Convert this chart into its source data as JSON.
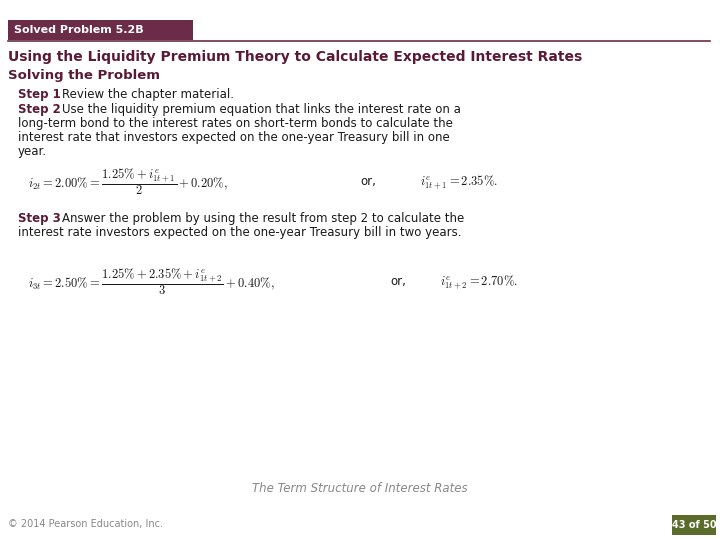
{
  "bg_color": "#ffffff",
  "header_bg": "#6b2c47",
  "header_text": "Solved Problem 5.2B",
  "header_text_color": "#ffffff",
  "title_text": "Using the Liquidity Premium Theory to Calculate Expected Interest Rates",
  "title_color": "#5a1a35",
  "subtitle_text": "Solving the Problem",
  "subtitle_color": "#5a1a35",
  "step_color": "#5a1a35",
  "body_color": "#1a1a1a",
  "footer_text": "The Term Structure of Interest Rates",
  "footer_color": "#888888",
  "copyright_text": "© 2014 Pearson Education, Inc.",
  "page_label": "43 of 50",
  "page_label_bg": "#5a6b2a",
  "page_label_color": "#ffffff",
  "line_color": "#6b2c47"
}
